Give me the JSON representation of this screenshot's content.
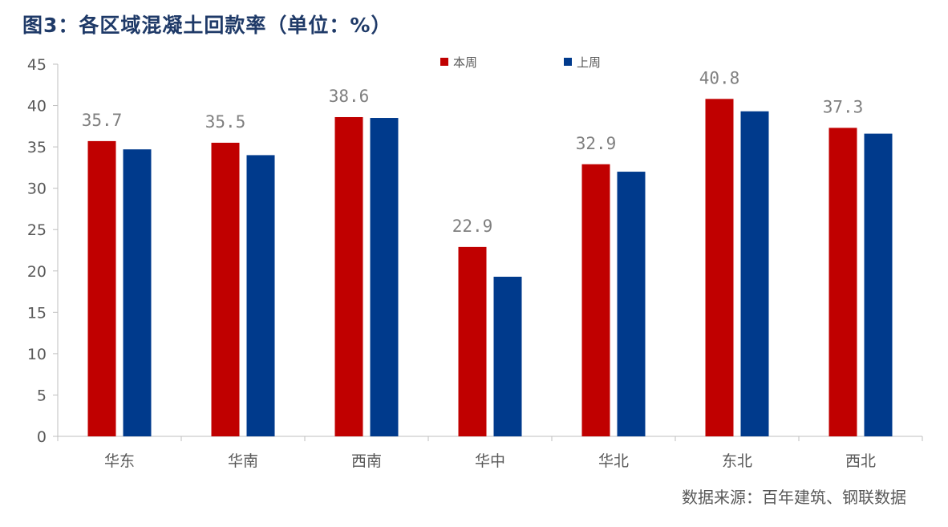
{
  "chart_title": "图3：各区域混凝土回款率（单位：%）",
  "source_note": "数据来源：百年建筑、钢联数据",
  "colors": {
    "current_week": "#c00000",
    "last_week": "#003a8c",
    "title": "#1f3a68",
    "axis": "#bfbfbf",
    "text": "#595959",
    "data_label": "#7f7f7f"
  },
  "chart_data": {
    "type": "bar",
    "title": "图3：各区域混凝土回款率（单位：%）",
    "xlabel": "",
    "ylabel": "",
    "ylim": [
      0,
      45
    ],
    "yticks": [
      0,
      5,
      10,
      15,
      20,
      25,
      30,
      35,
      40,
      45
    ],
    "grid": false,
    "legend_position": "top-center",
    "categories": [
      "华东",
      "华南",
      "西南",
      "华中",
      "华北",
      "东北",
      "西北"
    ],
    "series": [
      {
        "name": "本周",
        "color": "#c00000",
        "values": [
          35.7,
          35.5,
          38.6,
          22.9,
          32.9,
          40.8,
          37.3
        ],
        "labeled": true
      },
      {
        "name": "上周",
        "color": "#003a8c",
        "values": [
          34.7,
          34.0,
          38.5,
          19.3,
          32.0,
          39.3,
          36.6
        ],
        "labeled": false
      }
    ]
  }
}
